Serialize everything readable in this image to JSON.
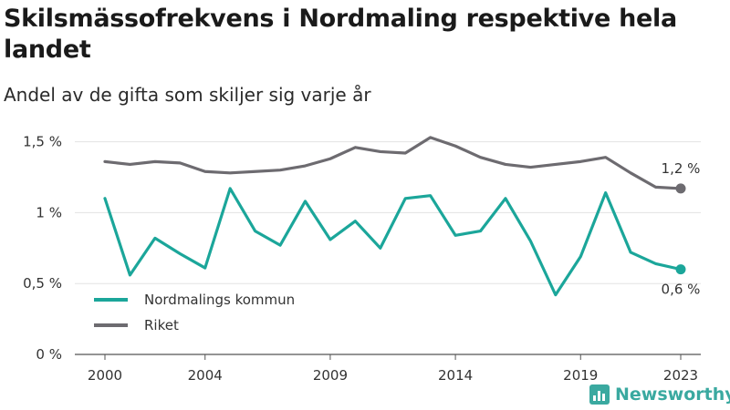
{
  "header": {
    "title": "Skilsmässofrekvens i Nordmaling respektive hela landet",
    "subtitle": "Andel av de gifta som skiljer sig varje år"
  },
  "brand": {
    "name": "Newsworthy"
  },
  "chart_data": {
    "type": "line",
    "x": [
      2000,
      2001,
      2002,
      2003,
      2004,
      2005,
      2006,
      2007,
      2008,
      2009,
      2010,
      2011,
      2012,
      2013,
      2014,
      2015,
      2016,
      2017,
      2018,
      2019,
      2020,
      2021,
      2022,
      2023
    ],
    "xticks": [
      2000,
      2004,
      2009,
      2014,
      2019,
      2023
    ],
    "yticks": [
      {
        "value": 0,
        "label": "0 %"
      },
      {
        "value": 0.5,
        "label": "0,5 %"
      },
      {
        "value": 1.0,
        "label": "1 %"
      },
      {
        "value": 1.5,
        "label": "1,5 %"
      }
    ],
    "ylim": [
      0,
      1.6
    ],
    "grid": true,
    "legend_position": "bottom-left",
    "series": [
      {
        "name": "Nordmalings kommun",
        "color": "#1ba69a",
        "end_label": "0,6 %",
        "values": [
          1.1,
          0.56,
          0.82,
          0.71,
          0.61,
          1.17,
          0.87,
          0.77,
          1.08,
          0.81,
          0.94,
          0.75,
          1.1,
          1.12,
          0.84,
          0.87,
          1.1,
          0.8,
          0.42,
          0.69,
          1.14,
          0.72,
          0.64,
          0.6
        ]
      },
      {
        "name": "Riket",
        "color": "#6d6b70",
        "end_label": "1,2 %",
        "values": [
          1.36,
          1.34,
          1.36,
          1.35,
          1.29,
          1.28,
          1.29,
          1.3,
          1.33,
          1.38,
          1.46,
          1.43,
          1.42,
          1.53,
          1.47,
          1.39,
          1.34,
          1.32,
          1.34,
          1.36,
          1.39,
          1.28,
          1.18,
          1.17
        ]
      }
    ]
  }
}
